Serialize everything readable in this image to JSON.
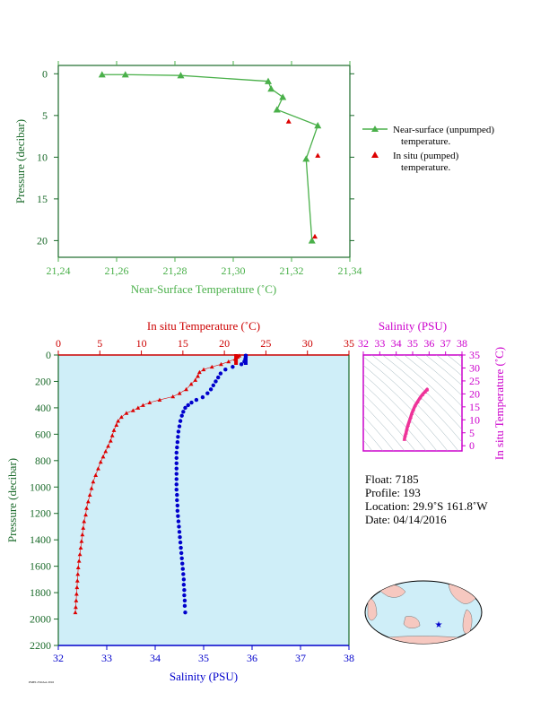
{
  "chart_data": [
    {
      "type": "line",
      "xlabel": "Near-Surface Temperature (˚C)",
      "ylabel": "Pressure (decibar)",
      "xlim": [
        21.24,
        21.34
      ],
      "ylim": [
        22,
        -1
      ],
      "x_ticks": [
        "21,24",
        "21,26",
        "21,28",
        "21,30",
        "21,32",
        "21,34"
      ],
      "y_ticks": [
        "0",
        "5",
        "10",
        "15",
        "20"
      ],
      "series": [
        {
          "name": "Near-surface (unpumped) temperature.",
          "color": "#4ab04a",
          "marker": "triangle",
          "points": [
            [
              21.255,
              0.1
            ],
            [
              21.263,
              0.1
            ],
            [
              21.282,
              0.2
            ],
            [
              21.312,
              0.9
            ],
            [
              21.313,
              1.8
            ],
            [
              21.317,
              2.8
            ],
            [
              21.315,
              4.3
            ],
            [
              21.329,
              6.2
            ],
            [
              21.325,
              10.2
            ],
            [
              21.327,
              20.0
            ]
          ]
        },
        {
          "name": "In situ (pumped) temperature.",
          "color": "#dd0000",
          "marker": "triangle",
          "points": [
            [
              21.319,
              5.7
            ],
            [
              21.329,
              9.8
            ],
            [
              21.328,
              19.5
            ]
          ]
        }
      ],
      "legend": [
        {
          "line1": "Near-surface (unpumped)",
          "line2": "temperature."
        },
        {
          "line1": "In situ (pumped)",
          "line2": "temperature."
        }
      ]
    },
    {
      "type": "scatter",
      "ylabel": "Pressure (decibar)",
      "top_xlabel": "In situ Temperature (˚C)",
      "bottom_xlabel": "Salinity (PSU)",
      "temp_lim": [
        0,
        35
      ],
      "sal_lim": [
        32,
        38
      ],
      "ylim": [
        2200,
        0
      ],
      "temp_ticks": [
        "0",
        "5",
        "10",
        "15",
        "20",
        "25",
        "30",
        "35"
      ],
      "sal_ticks": [
        "32",
        "33",
        "34",
        "35",
        "36",
        "37",
        "38"
      ],
      "y_ticks": [
        "0",
        "200",
        "400",
        "600",
        "800",
        "1000",
        "1200",
        "1400",
        "1600",
        "1800",
        "2000",
        "2200"
      ],
      "temperature": [
        [
          21.8,
          5
        ],
        [
          21.6,
          15
        ],
        [
          21.3,
          30
        ],
        [
          20.5,
          50
        ],
        [
          19.6,
          70
        ],
        [
          18.5,
          90
        ],
        [
          17.5,
          110
        ],
        [
          17.0,
          130
        ],
        [
          16.8,
          160
        ],
        [
          16.5,
          190
        ],
        [
          16.0,
          220
        ],
        [
          15.4,
          260
        ],
        [
          14.6,
          290
        ],
        [
          13.8,
          315
        ],
        [
          12.2,
          340
        ],
        [
          11.0,
          360
        ],
        [
          10.2,
          380
        ],
        [
          9.6,
          400
        ],
        [
          9.0,
          420
        ],
        [
          8.2,
          440
        ],
        [
          7.6,
          470
        ],
        [
          7.2,
          500
        ],
        [
          7.0,
          530
        ],
        [
          6.7,
          570
        ],
        [
          6.5,
          610
        ],
        [
          6.3,
          650
        ],
        [
          6.0,
          690
        ],
        [
          5.7,
          730
        ],
        [
          5.4,
          770
        ],
        [
          5.1,
          810
        ],
        [
          4.8,
          860
        ],
        [
          4.5,
          910
        ],
        [
          4.2,
          960
        ],
        [
          4.0,
          1010
        ],
        [
          3.8,
          1060
        ],
        [
          3.6,
          1110
        ],
        [
          3.4,
          1160
        ],
        [
          3.3,
          1210
        ],
        [
          3.1,
          1260
        ],
        [
          3.0,
          1310
        ],
        [
          2.9,
          1360
        ],
        [
          2.8,
          1410
        ],
        [
          2.7,
          1460
        ],
        [
          2.6,
          1510
        ],
        [
          2.5,
          1560
        ],
        [
          2.4,
          1610
        ],
        [
          2.35,
          1660
        ],
        [
          2.3,
          1710
        ],
        [
          2.25,
          1760
        ],
        [
          2.2,
          1810
        ],
        [
          2.15,
          1860
        ],
        [
          2.1,
          1910
        ],
        [
          2.05,
          1950
        ]
      ],
      "salinity": [
        [
          35.87,
          5
        ],
        [
          35.87,
          15
        ],
        [
          35.86,
          30
        ],
        [
          35.84,
          50
        ],
        [
          35.78,
          70
        ],
        [
          35.6,
          90
        ],
        [
          35.45,
          110
        ],
        [
          35.35,
          140
        ],
        [
          35.3,
          170
        ],
        [
          35.25,
          200
        ],
        [
          35.2,
          230
        ],
        [
          35.15,
          260
        ],
        [
          35.08,
          290
        ],
        [
          34.98,
          320
        ],
        [
          34.85,
          340
        ],
        [
          34.75,
          360
        ],
        [
          34.68,
          380
        ],
        [
          34.62,
          400
        ],
        [
          34.58,
          430
        ],
        [
          34.55,
          460
        ],
        [
          34.52,
          500
        ],
        [
          34.5,
          540
        ],
        [
          34.48,
          580
        ],
        [
          34.47,
          620
        ],
        [
          34.46,
          660
        ],
        [
          34.45,
          700
        ],
        [
          34.44,
          740
        ],
        [
          34.44,
          780
        ],
        [
          34.44,
          820
        ],
        [
          34.44,
          860
        ],
        [
          34.44,
          900
        ],
        [
          34.44,
          940
        ],
        [
          34.44,
          980
        ],
        [
          34.44,
          1020
        ],
        [
          34.45,
          1060
        ],
        [
          34.45,
          1100
        ],
        [
          34.46,
          1140
        ],
        [
          34.46,
          1180
        ],
        [
          34.47,
          1220
        ],
        [
          34.48,
          1260
        ],
        [
          34.49,
          1300
        ],
        [
          34.5,
          1340
        ],
        [
          34.51,
          1380
        ],
        [
          34.52,
          1420
        ],
        [
          34.53,
          1460
        ],
        [
          34.54,
          1500
        ],
        [
          34.55,
          1540
        ],
        [
          34.56,
          1580
        ],
        [
          34.57,
          1620
        ],
        [
          34.58,
          1660
        ],
        [
          34.59,
          1700
        ],
        [
          34.59,
          1740
        ],
        [
          34.6,
          1780
        ],
        [
          34.6,
          1820
        ],
        [
          34.61,
          1860
        ],
        [
          34.61,
          1900
        ],
        [
          34.62,
          1950
        ]
      ]
    },
    {
      "type": "scatter",
      "top_xlabel": "Salinity (PSU)",
      "right_ylabel": "In situ Temperature (˚C)",
      "sal_lim": [
        32,
        38
      ],
      "temp_lim": [
        -2,
        35
      ],
      "sal_ticks": [
        "32",
        "33",
        "34",
        "35",
        "36",
        "37",
        "38"
      ],
      "temp_ticks": [
        "0",
        "5",
        "10",
        "15",
        "20",
        "25",
        "30",
        "35"
      ],
      "ts_points": [
        [
          34.5,
          2.5
        ],
        [
          34.55,
          4
        ],
        [
          34.6,
          5
        ],
        [
          34.65,
          6.5
        ],
        [
          34.72,
          8
        ],
        [
          34.8,
          9.5
        ],
        [
          34.88,
          11
        ],
        [
          34.95,
          12.5
        ],
        [
          35.05,
          14
        ],
        [
          35.15,
          15.5
        ],
        [
          35.3,
          17
        ],
        [
          35.45,
          18.5
        ],
        [
          35.6,
          19.8
        ],
        [
          35.75,
          20.8
        ],
        [
          35.85,
          21.5
        ],
        [
          35.88,
          21.8
        ]
      ]
    }
  ],
  "info": {
    "float": "Float:  7185",
    "profile": "Profile:  193",
    "location": "Location:  29.9˚S  161.8˚W",
    "date": "Date:  04/14/2016"
  },
  "footnote": "PMEL/NOAA 2016",
  "colors": {
    "near_surface": "#4ab04a",
    "temperature": "#dd0000",
    "salinity": "#0000cc",
    "ts_diagram": "#ee3399",
    "panel_bg": "#cfeef8",
    "land": "#f6c8c0"
  }
}
